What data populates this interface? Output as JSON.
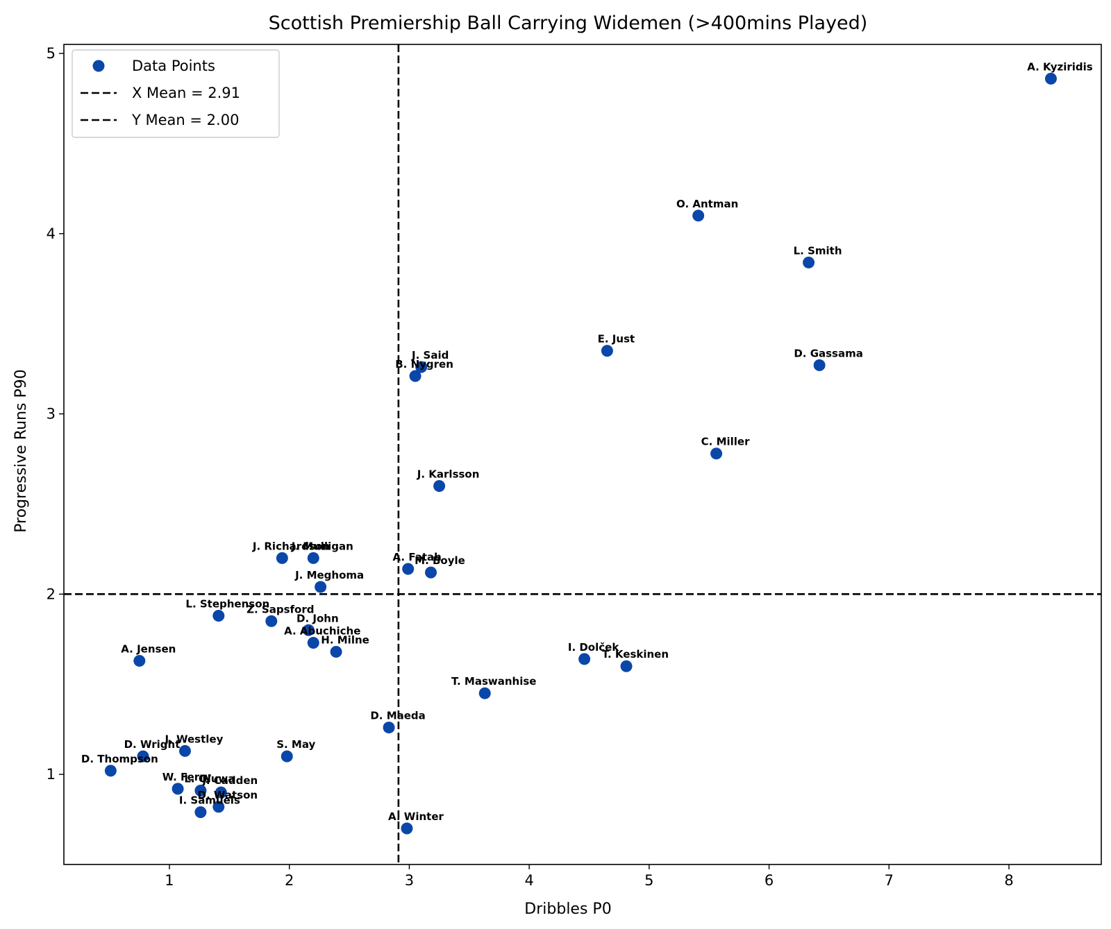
{
  "chart_data": {
    "type": "scatter",
    "title": "Scottish Premiership Ball Carrying Widemen (>400mins Played)",
    "xlabel": "Dribbles P0",
    "ylabel": "Progressive Runs P90",
    "xlim": [
      0.12,
      8.77
    ],
    "ylim": [
      0.5,
      5.05
    ],
    "xticks": [
      1,
      2,
      3,
      4,
      5,
      6,
      7,
      8
    ],
    "yticks": [
      1,
      2,
      3,
      4,
      5
    ],
    "point_color": "#0a47a9",
    "x_mean": 2.91,
    "y_mean": 2.0,
    "legend": {
      "position": "top-left",
      "entries": [
        "Data Points",
        "X Mean = 2.91",
        "Y Mean = 2.00"
      ]
    },
    "points": [
      {
        "label": "A. Kyziridis",
        "x": 8.35,
        "y": 4.86
      },
      {
        "label": "O. Antman",
        "x": 5.41,
        "y": 4.1
      },
      {
        "label": "L. Smith",
        "x": 6.33,
        "y": 3.84
      },
      {
        "label": "E. Just",
        "x": 4.65,
        "y": 3.35
      },
      {
        "label": "D. Gassama",
        "x": 6.42,
        "y": 3.27
      },
      {
        "label": "J. Said",
        "x": 3.1,
        "y": 3.26
      },
      {
        "label": "B. Nygren",
        "x": 3.05,
        "y": 3.21
      },
      {
        "label": "C. Miller",
        "x": 5.56,
        "y": 2.78
      },
      {
        "label": "J. Karlsson",
        "x": 3.25,
        "y": 2.6
      },
      {
        "label": "J. Richardson",
        "x": 1.94,
        "y": 2.2
      },
      {
        "label": "J. Mulligan",
        "x": 2.2,
        "y": 2.2
      },
      {
        "label": "A. Fatah",
        "x": 2.99,
        "y": 2.14
      },
      {
        "label": "M. Boyle",
        "x": 3.18,
        "y": 2.12
      },
      {
        "label": "J. Meghoma",
        "x": 2.26,
        "y": 2.04
      },
      {
        "label": "L. Stephenson",
        "x": 1.41,
        "y": 1.88
      },
      {
        "label": "Z. Sapsford",
        "x": 1.85,
        "y": 1.85
      },
      {
        "label": "D. John",
        "x": 2.16,
        "y": 1.8
      },
      {
        "label": "A. Abuchiche",
        "x": 2.2,
        "y": 1.73
      },
      {
        "label": "H. Milne",
        "x": 2.39,
        "y": 1.68
      },
      {
        "label": "A. Jensen",
        "x": 0.75,
        "y": 1.63
      },
      {
        "label": "I. Dolček",
        "x": 4.46,
        "y": 1.64
      },
      {
        "label": "T. Keskinen",
        "x": 4.81,
        "y": 1.6
      },
      {
        "label": "T. Maswanhise",
        "x": 3.63,
        "y": 1.45
      },
      {
        "label": "D. Maeda",
        "x": 2.83,
        "y": 1.26
      },
      {
        "label": "J. Westley",
        "x": 1.13,
        "y": 1.13
      },
      {
        "label": "D. Wright",
        "x": 0.78,
        "y": 1.1
      },
      {
        "label": "S. May",
        "x": 1.98,
        "y": 1.1
      },
      {
        "label": "D. Thompson",
        "x": 0.51,
        "y": 1.02
      },
      {
        "label": "W. Ferry",
        "x": 1.07,
        "y": 0.92
      },
      {
        "label": "J. Cadden",
        "x": 1.43,
        "y": 0.9
      },
      {
        "label": "L. Oluwa",
        "x": 1.26,
        "y": 0.91
      },
      {
        "label": "D. Watson",
        "x": 1.41,
        "y": 0.82
      },
      {
        "label": "I. Samuels",
        "x": 1.26,
        "y": 0.79
      },
      {
        "label": "A. Winter",
        "x": 2.98,
        "y": 0.7
      }
    ]
  }
}
